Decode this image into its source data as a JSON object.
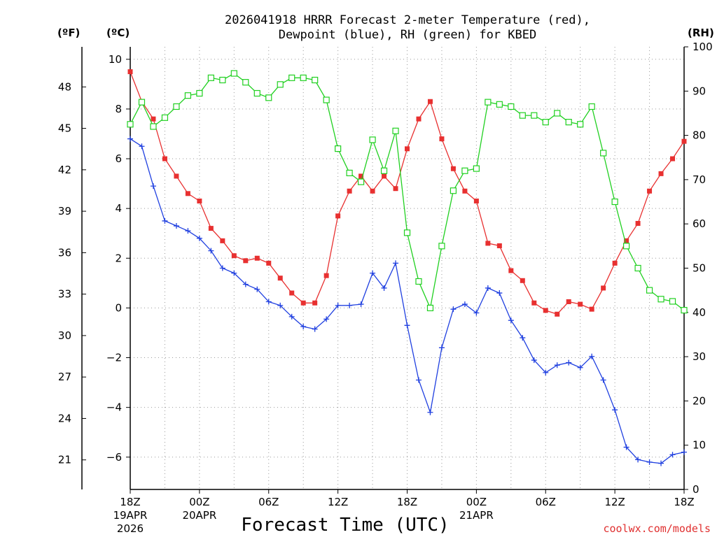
{
  "chart_data": {
    "type": "line",
    "title": [
      "2026041918 HRRR Forecast 2-meter Temperature (red),",
      "Dewpoint (blue), RH (green) for KBED"
    ],
    "xlabel": "Forecast Time (UTC)",
    "credit": "coolwx.com/models",
    "units": {
      "fahrenheit": "(ºF)",
      "celsius": "(ºC)",
      "rh": "(RH)"
    },
    "x_hours": [
      0,
      1,
      2,
      3,
      4,
      5,
      6,
      7,
      8,
      9,
      10,
      11,
      12,
      13,
      14,
      15,
      16,
      17,
      18,
      19,
      20,
      21,
      22,
      23,
      24,
      25,
      26,
      27,
      28,
      29,
      30,
      31,
      32,
      33,
      34,
      35,
      36,
      37,
      38,
      39,
      40,
      41,
      42,
      43,
      44,
      45,
      46,
      47,
      48
    ],
    "xlim": [
      0,
      48
    ],
    "x_ticks": [
      {
        "hour": 0,
        "lines": [
          "18Z",
          "19APR",
          "2026"
        ]
      },
      {
        "hour": 6,
        "lines": [
          "00Z",
          "20APR"
        ]
      },
      {
        "hour": 12,
        "lines": [
          "06Z"
        ]
      },
      {
        "hour": 18,
        "lines": [
          "12Z"
        ]
      },
      {
        "hour": 24,
        "lines": [
          "18Z"
        ]
      },
      {
        "hour": 30,
        "lines": [
          "00Z",
          "21APR"
        ]
      },
      {
        "hour": 36,
        "lines": [
          "06Z"
        ]
      },
      {
        "hour": 42,
        "lines": [
          "12Z"
        ]
      },
      {
        "hour": 48,
        "lines": [
          "18Z"
        ]
      }
    ],
    "y_celsius": {
      "lim": [
        -7.3,
        10.5
      ],
      "ticks": [
        10,
        8,
        6,
        4,
        2,
        0,
        -2,
        -4,
        -6
      ],
      "labels": [
        "10",
        "8",
        "6",
        "4",
        "2",
        "0",
        "−2",
        "−4",
        "−6"
      ]
    },
    "y_fahrenheit": {
      "ticks": [
        48,
        45,
        42,
        39,
        36,
        33,
        30,
        27,
        24,
        21
      ]
    },
    "y_rh": {
      "lim": [
        0,
        100
      ],
      "ticks": [
        100,
        90,
        80,
        70,
        60,
        50,
        40,
        30,
        20,
        10,
        0
      ]
    },
    "series": [
      {
        "name": "Temperature",
        "color": "#e83030",
        "marker": "square-filled",
        "axis": "celsius",
        "values": [
          9.5,
          8.3,
          7.6,
          6.0,
          5.3,
          4.6,
          4.3,
          3.2,
          2.7,
          2.1,
          1.9,
          2.0,
          1.8,
          1.2,
          0.6,
          0.2,
          0.2,
          1.3,
          3.7,
          4.7,
          5.3,
          4.7,
          5.3,
          4.8,
          6.4,
          7.6,
          8.3,
          6.8,
          5.6,
          4.7,
          4.3,
          2.6,
          2.5,
          1.5,
          1.1,
          0.2,
          -0.1,
          -0.25,
          0.25,
          0.15,
          -0.05,
          0.8,
          1.8,
          2.7,
          3.4,
          4.7,
          5.4,
          6.0,
          6.7
        ]
      },
      {
        "name": "Dewpoint",
        "color": "#2040e0",
        "marker": "plus",
        "axis": "celsius",
        "values": [
          6.8,
          6.5,
          4.9,
          3.5,
          3.3,
          3.1,
          2.8,
          2.3,
          1.6,
          1.4,
          0.95,
          0.75,
          0.25,
          0.1,
          -0.35,
          -0.75,
          -0.85,
          -0.45,
          0.1,
          0.1,
          0.15,
          1.4,
          0.8,
          1.8,
          -0.7,
          -2.9,
          -4.2,
          -1.6,
          -0.05,
          0.15,
          -0.2,
          0.8,
          0.6,
          -0.5,
          -1.2,
          -2.1,
          -2.6,
          -2.3,
          -2.2,
          -2.4,
          -1.95,
          -2.9,
          -4.1,
          -5.6,
          -6.1,
          -6.2,
          -6.25,
          -5.9,
          -5.8
        ]
      },
      {
        "name": "RH",
        "color": "#20d020",
        "marker": "square-open",
        "axis": "rh",
        "values": [
          82.5,
          87.5,
          82,
          84,
          86.5,
          89,
          89.5,
          93,
          92.5,
          94,
          92,
          89.5,
          88.5,
          91.5,
          93,
          93,
          92.5,
          88,
          77,
          71.5,
          69.5,
          79,
          72,
          81,
          58,
          47,
          41,
          55,
          67.5,
          72,
          72.5,
          87.5,
          87,
          86.5,
          84.5,
          84.5,
          83,
          85,
          83,
          82.5,
          86.5,
          76,
          65,
          55,
          50,
          45,
          43,
          42.5,
          40.5
        ]
      }
    ]
  }
}
